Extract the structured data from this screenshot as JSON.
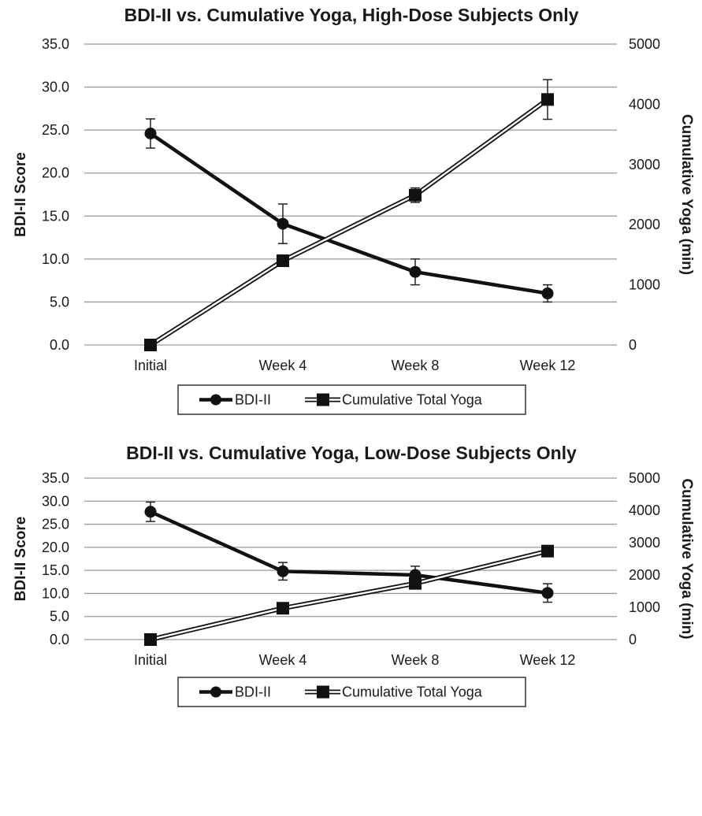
{
  "chart_data": [
    {
      "type": "line",
      "title": "BDI-II vs. Cumulative Yoga, High-Dose Subjects Only",
      "categories": [
        "Initial",
        "Week 4",
        "Week 8",
        "Week 12"
      ],
      "ylabel": "BDI-II Score",
      "y2label": "Cumulative Yoga (min)",
      "ylim": [
        0,
        35
      ],
      "y_ticks": [
        "0.0",
        "5.0",
        "10.0",
        "15.0",
        "20.0",
        "25.0",
        "30.0",
        "35.0"
      ],
      "y2lim": [
        0,
        5000
      ],
      "y2_ticks": [
        "0",
        "1000",
        "2000",
        "3000",
        "4000",
        "5000"
      ],
      "grid": true,
      "legend_position": "bottom",
      "series": [
        {
          "name": "BDI-II",
          "axis": "left",
          "marker": "circle",
          "style": "solid",
          "color": "#111111",
          "values": [
            24.6,
            14.1,
            8.5,
            6.0
          ],
          "error": [
            1.7,
            2.3,
            1.5,
            1.0
          ]
        },
        {
          "name": "Cumulative Total Yoga",
          "axis": "right",
          "marker": "square",
          "style": "double",
          "color": "#111111",
          "values": [
            0,
            1400,
            2490,
            4080
          ],
          "error": [
            0,
            0,
            120,
            330
          ]
        }
      ]
    },
    {
      "type": "line",
      "title": "BDI-II vs. Cumulative Yoga, Low-Dose Subjects Only",
      "categories": [
        "Initial",
        "Week 4",
        "Week 8",
        "Week 12"
      ],
      "ylabel": "BDI-II Score",
      "y2label": "Cumulative Yoga (min)",
      "ylim": [
        0,
        35
      ],
      "y_ticks": [
        "0.0",
        "5.0",
        "10.0",
        "15.0",
        "20.0",
        "25.0",
        "30.0",
        "35.0"
      ],
      "y2lim": [
        0,
        5000
      ],
      "y2_ticks": [
        "0",
        "1000",
        "2000",
        "3000",
        "4000",
        "5000"
      ],
      "grid": true,
      "legend_position": "bottom",
      "series": [
        {
          "name": "BDI-II",
          "axis": "left",
          "marker": "circle",
          "style": "solid",
          "color": "#111111",
          "values": [
            27.7,
            14.8,
            14.0,
            10.1
          ],
          "error": [
            2.1,
            1.9,
            1.9,
            2.0
          ]
        },
        {
          "name": "Cumulative Total Yoga",
          "axis": "right",
          "marker": "square",
          "style": "double",
          "color": "#111111",
          "values": [
            0,
            970,
            1740,
            2740
          ],
          "error": [
            0,
            0,
            0,
            160
          ]
        }
      ]
    }
  ]
}
